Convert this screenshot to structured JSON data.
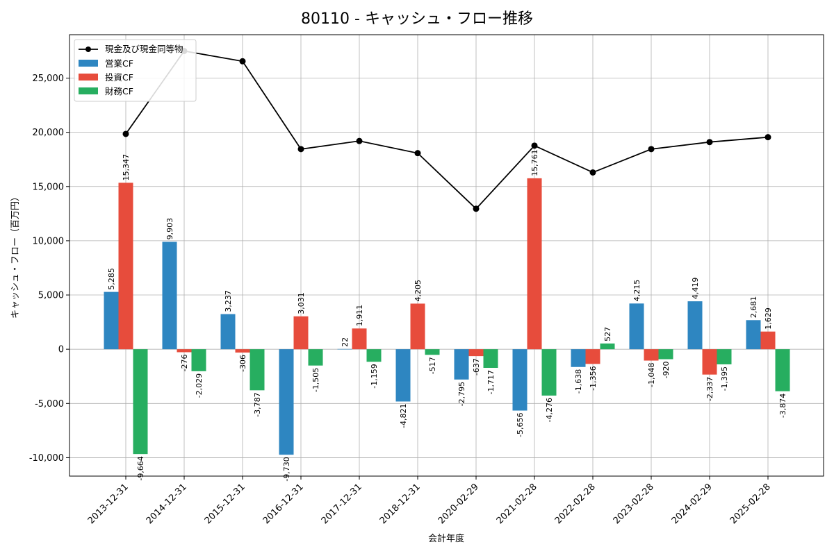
{
  "chart_data": {
    "type": "bar",
    "title": "80110 - キャッシュ・フロー推移",
    "xlabel": "会計年度",
    "ylabel": "キャッシュ・フロー（百万円）",
    "ylim": [
      -11700,
      29000
    ],
    "yticks": [
      -10000,
      -5000,
      0,
      5000,
      10000,
      15000,
      20000,
      25000
    ],
    "ytick_labels": [
      "-10,000",
      "-5,000",
      "0",
      "5,000",
      "10,000",
      "15,000",
      "20,000",
      "25,000"
    ],
    "grid": true,
    "legend_position": "top-left",
    "categories": [
      "2013-12-31",
      "2014-12-31",
      "2015-12-31",
      "2016-12-31",
      "2017-12-31",
      "2018-12-31",
      "2020-02-29",
      "2021-02-28",
      "2022-02-28",
      "2023-02-28",
      "2024-02-29",
      "2025-02-28"
    ],
    "series": [
      {
        "name": "営業CF",
        "kind": "bar",
        "color": "#2e86c1",
        "values": [
          5285,
          9903,
          3237,
          -9730,
          22,
          -4821,
          -2795,
          -5656,
          -1638,
          4215,
          4419,
          2681
        ],
        "labels": [
          "5,285",
          "9,903",
          "3,237",
          "-9,730",
          "22",
          "-4,821",
          "-2,795",
          "-5,656",
          "-1,638",
          "4,215",
          "4,419",
          "2,681"
        ]
      },
      {
        "name": "投資CF",
        "kind": "bar",
        "color": "#e74c3c",
        "values": [
          15347,
          -276,
          -306,
          3031,
          1911,
          4205,
          -637,
          15761,
          -1356,
          -1048,
          -2337,
          1629
        ],
        "labels": [
          "15,347",
          "-276",
          "-306",
          "3,031",
          "1,911",
          "4,205",
          "-637",
          "15,761",
          "-1,356",
          "-1,048",
          "-2,337",
          "1,629"
        ]
      },
      {
        "name": "財務CF",
        "kind": "bar",
        "color": "#27ae60",
        "values": [
          -9664,
          -2029,
          -3787,
          -1505,
          -1159,
          -517,
          -1717,
          -4276,
          527,
          -920,
          -1395,
          -3874
        ],
        "labels": [
          "-9,664",
          "-2,029",
          "-3,787",
          "-1,505",
          "-1,159",
          "-517",
          "-1,717",
          "-4,276",
          "527",
          "-920",
          "-1,395",
          "-3,874"
        ]
      },
      {
        "name": "現金及び現金同等物",
        "kind": "line",
        "color": "#000000",
        "values": [
          19850,
          27500,
          26550,
          18450,
          19200,
          18080,
          12950,
          18770,
          16300,
          18450,
          19100,
          19550
        ]
      }
    ]
  }
}
